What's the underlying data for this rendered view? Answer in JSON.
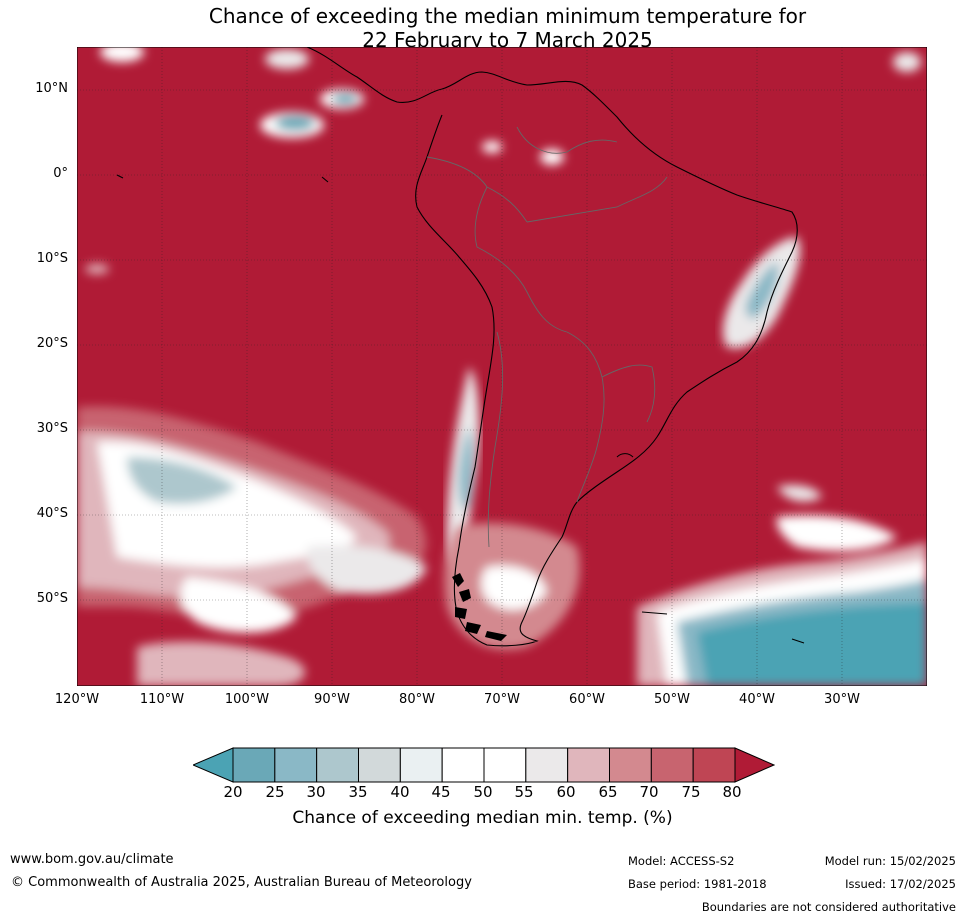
{
  "title": {
    "line1": "Chance of exceeding the median minimum temperature for",
    "line2": "22 February to 7 March 2025"
  },
  "map": {
    "lat_labels": [
      "10°N",
      "0°",
      "10°S",
      "20°S",
      "30°S",
      "40°S",
      "50°S"
    ],
    "lon_labels": [
      "120°W",
      "110°W",
      "100°W",
      "90°W",
      "80°W",
      "70°W",
      "60°W",
      "50°W",
      "40°W",
      "30°W"
    ],
    "extent": {
      "lon_min": -120,
      "lon_max": -20,
      "lat_min": -60,
      "lat_max": 15
    },
    "background_color": "#b01b36"
  },
  "legend": {
    "title": "Chance of exceeding median min. temp. (%)",
    "ticks": [
      "20",
      "25",
      "30",
      "35",
      "40",
      "45",
      "50",
      "55",
      "60",
      "65",
      "70",
      "75",
      "80"
    ],
    "colors": [
      "#4ba3b4",
      "#6aa8b7",
      "#8ab8c6",
      "#adc7cd",
      "#d2d9da",
      "#eaf0f2",
      "#ffffff",
      "#ffffff",
      "#ebe9ea",
      "#e0b6bc",
      "#d3898f",
      "#c8646f",
      "#bf4554",
      "#b01b36"
    ]
  },
  "footer": {
    "website": "www.bom.gov.au/climate",
    "copyright": "© Commonwealth of Australia 2025, Australian Bureau of Meteorology",
    "model": "Model: ACCESS-S2",
    "base_period": "Base period: 1981-2018",
    "model_run": "Model run: 15/02/2025",
    "issued": "Issued: 17/02/2025",
    "disclaimer": "Boundaries are not considered authoritative"
  }
}
